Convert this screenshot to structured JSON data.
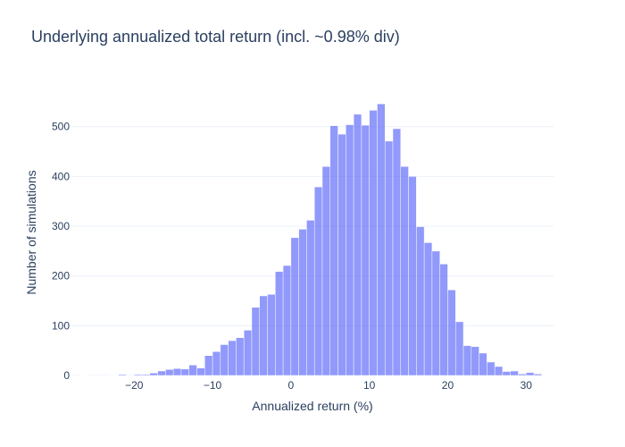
{
  "chart_data": {
    "type": "bar",
    "title": "Underlying annualized total return (incl. ~0.98% div)",
    "xlabel": "Annualized return (%)",
    "ylabel": "Number of simulations",
    "xlim": [
      -28,
      33.5
    ],
    "ylim": [
      0,
      575
    ],
    "x_ticks": [
      -20,
      -10,
      0,
      10,
      20,
      30
    ],
    "x_tick_labels": [
      "−20",
      "−10",
      "0",
      "10",
      "20",
      "30"
    ],
    "y_ticks": [
      0,
      100,
      200,
      300,
      400,
      500
    ],
    "y_tick_labels": [
      "0",
      "100",
      "200",
      "300",
      "400",
      "500"
    ],
    "grid": true,
    "bin_width": 1,
    "bins": [
      {
        "x0": -28,
        "count": 1
      },
      {
        "x0": -27,
        "count": 0
      },
      {
        "x0": -26,
        "count": 1
      },
      {
        "x0": -25,
        "count": 1
      },
      {
        "x0": -24,
        "count": 1
      },
      {
        "x0": -23,
        "count": 0
      },
      {
        "x0": -22,
        "count": 2
      },
      {
        "x0": -21,
        "count": 1
      },
      {
        "x0": -20,
        "count": 2
      },
      {
        "x0": -19,
        "count": 2
      },
      {
        "x0": -18,
        "count": 5
      },
      {
        "x0": -17,
        "count": 9
      },
      {
        "x0": -16,
        "count": 12
      },
      {
        "x0": -15,
        "count": 14
      },
      {
        "x0": -14,
        "count": 13
      },
      {
        "x0": -13,
        "count": 21
      },
      {
        "x0": -12,
        "count": 15
      },
      {
        "x0": -11,
        "count": 40
      },
      {
        "x0": -10,
        "count": 48
      },
      {
        "x0": -9,
        "count": 62
      },
      {
        "x0": -8,
        "count": 70
      },
      {
        "x0": -7,
        "count": 76
      },
      {
        "x0": -6,
        "count": 91
      },
      {
        "x0": -5,
        "count": 137
      },
      {
        "x0": -4,
        "count": 160
      },
      {
        "x0": -3,
        "count": 163
      },
      {
        "x0": -2,
        "count": 209
      },
      {
        "x0": -1,
        "count": 221
      },
      {
        "x0": 0,
        "count": 277
      },
      {
        "x0": 1,
        "count": 294
      },
      {
        "x0": 2,
        "count": 312
      },
      {
        "x0": 3,
        "count": 379
      },
      {
        "x0": 4,
        "count": 420
      },
      {
        "x0": 5,
        "count": 502
      },
      {
        "x0": 6,
        "count": 485
      },
      {
        "x0": 7,
        "count": 504
      },
      {
        "x0": 8,
        "count": 525
      },
      {
        "x0": 9,
        "count": 503
      },
      {
        "x0": 10,
        "count": 533
      },
      {
        "x0": 11,
        "count": 546
      },
      {
        "x0": 12,
        "count": 471
      },
      {
        "x0": 13,
        "count": 496
      },
      {
        "x0": 14,
        "count": 420
      },
      {
        "x0": 15,
        "count": 400
      },
      {
        "x0": 16,
        "count": 299
      },
      {
        "x0": 17,
        "count": 267
      },
      {
        "x0": 18,
        "count": 250
      },
      {
        "x0": 19,
        "count": 224
      },
      {
        "x0": 20,
        "count": 172
      },
      {
        "x0": 21,
        "count": 108
      },
      {
        "x0": 22,
        "count": 60
      },
      {
        "x0": 23,
        "count": 58
      },
      {
        "x0": 24,
        "count": 45
      },
      {
        "x0": 25,
        "count": 27
      },
      {
        "x0": 26,
        "count": 18
      },
      {
        "x0": 27,
        "count": 8
      },
      {
        "x0": 28,
        "count": 9
      },
      {
        "x0": 29,
        "count": 3
      },
      {
        "x0": 30,
        "count": 6
      },
      {
        "x0": 31,
        "count": 3
      }
    ],
    "bar_color": "#636efa"
  }
}
